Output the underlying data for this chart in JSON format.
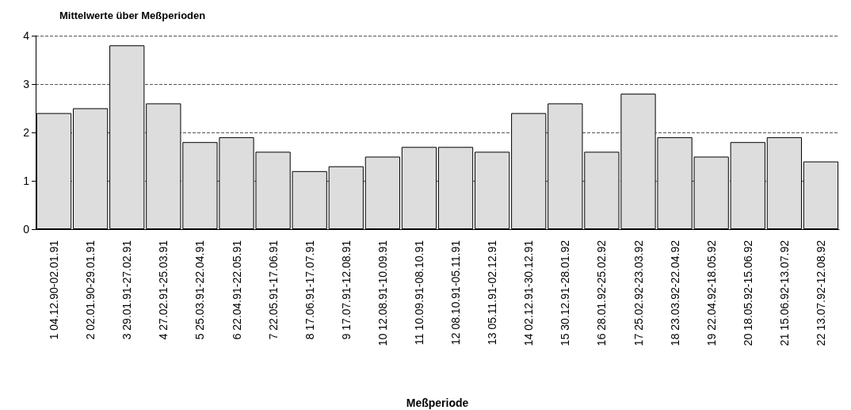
{
  "chart_data": {
    "type": "bar",
    "title": "Mittelwerte über Meßperioden",
    "xlabel": "Meßperiode",
    "categories": [
      "1 04.12.90-02.01.91",
      "2 02.01.90-29.01.91",
      "3 29.01.91-27.02.91",
      "4 27.02.91-25.03.91",
      "5 25.03.91-22.04.91",
      "6 22.04.91-22.05.91",
      "7 22.05.91-17.06.91",
      "8 17.06.91-17.07.91",
      "9 17.07.91-12.08.91",
      "10 12.08.91-10.09.91",
      "11 10.09.91-08.10.91",
      "12 08.10.91-05.11.91",
      "13 05.11.91-02.12.91",
      "14 02.12.91-30.12.91",
      "15 30.12.91-28.01.92",
      "16 28.01.92-25.02.92",
      "17 25.02.92-23.03.92",
      "18 23.03.92-22.04.92",
      "19 22.04.92-18.05.92",
      "20 18.05.92-15.06.92",
      "21 15.06.92-13.07.92",
      "22 13.07.92-12.08.92"
    ],
    "values": [
      2.4,
      2.5,
      3.8,
      2.6,
      1.8,
      1.9,
      1.6,
      1.2,
      1.3,
      1.5,
      1.7,
      1.7,
      1.6,
      2.4,
      2.6,
      1.6,
      2.8,
      1.9,
      1.5,
      1.8,
      1.9,
      1.4
    ],
    "color": "#dddddd",
    "ylim": [
      0,
      4
    ],
    "yticks": [
      0,
      1,
      2,
      3,
      4
    ],
    "grid": "y"
  }
}
